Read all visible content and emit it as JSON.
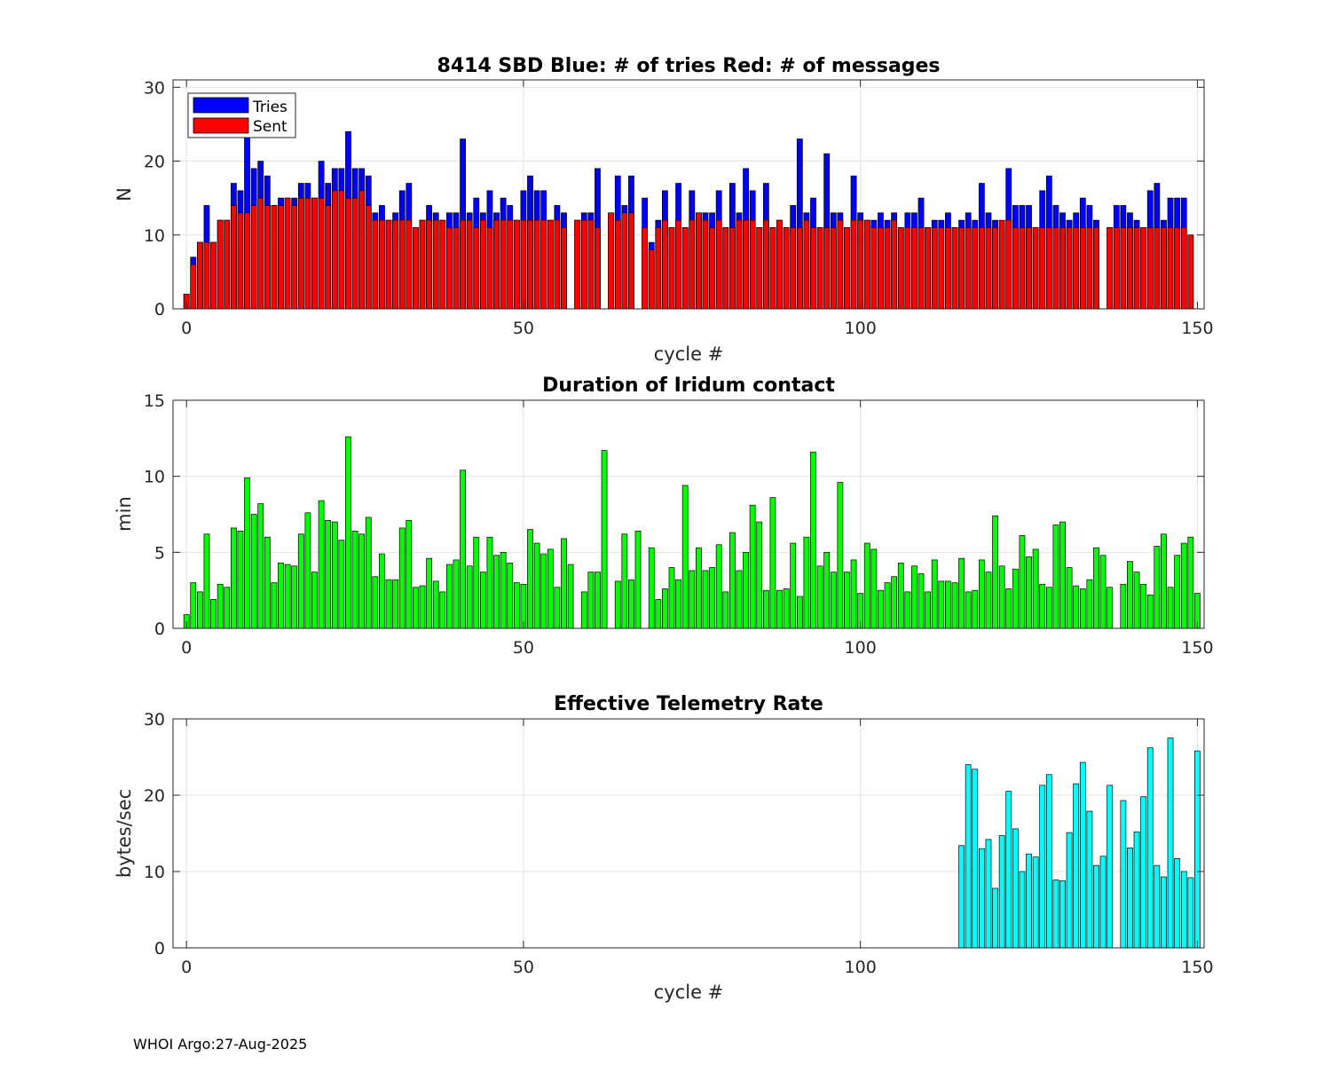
{
  "chart_data": [
    {
      "type": "bar",
      "title": "8414 SBD  Blue: # of tries   Red: # of messages",
      "xlabel": "cycle #",
      "ylabel": "N",
      "xlim": [
        -2,
        151
      ],
      "ylim": [
        0,
        31
      ],
      "xticks": [
        0,
        50,
        100,
        150
      ],
      "yticks": [
        0,
        10,
        20,
        30
      ],
      "grid": true,
      "legend": {
        "position": "top-left",
        "entries": [
          "Tries",
          "Sent"
        ]
      },
      "x_start": 0,
      "series": [
        {
          "name": "Tries",
          "color": "#0000ff",
          "values": [
            2,
            7,
            9,
            14,
            9,
            12,
            12,
            17,
            16,
            24,
            19,
            20,
            18,
            14,
            15,
            15,
            15,
            17,
            17,
            15,
            20,
            17,
            19,
            19,
            24,
            19,
            19,
            18,
            13,
            14,
            12,
            13,
            16,
            17,
            11,
            12,
            14,
            13,
            12,
            13,
            13,
            23,
            13,
            15,
            13,
            16,
            13,
            15,
            14,
            12,
            16,
            18,
            16,
            16,
            12,
            14,
            13,
            null,
            12,
            13,
            13,
            19,
            null,
            13,
            18,
            14,
            18,
            null,
            15,
            9,
            12,
            16,
            11,
            17,
            11,
            16,
            13,
            13,
            13,
            16,
            11,
            17,
            13,
            19,
            16,
            11,
            17,
            11,
            12,
            11,
            14,
            23,
            13,
            15,
            11,
            21,
            13,
            13,
            11,
            18,
            13,
            12,
            12,
            13,
            12,
            13,
            11,
            13,
            13,
            15,
            11,
            12,
            12,
            13,
            11,
            12,
            13,
            12,
            17,
            13,
            12,
            11,
            19,
            14,
            14,
            14,
            11,
            16,
            18,
            14,
            13,
            12,
            13,
            15,
            14,
            12,
            null,
            11,
            14,
            14,
            13,
            12,
            11,
            16,
            17,
            12,
            15,
            15,
            15,
            10
          ]
        },
        {
          "name": "Sent",
          "color": "#ff0000",
          "values": [
            2,
            6,
            9,
            9,
            9,
            12,
            12,
            14,
            13,
            13,
            14,
            15,
            14,
            14,
            14,
            15,
            14,
            15,
            15,
            15,
            15,
            14,
            16,
            16,
            15,
            15,
            16,
            14,
            12,
            12,
            12,
            12,
            12,
            12,
            11,
            12,
            12,
            12,
            12,
            11,
            11,
            12,
            12,
            11,
            12,
            11,
            12,
            12,
            12,
            12,
            12,
            12,
            12,
            12,
            12,
            12,
            11,
            null,
            12,
            12,
            12,
            11,
            null,
            13,
            12,
            13,
            13,
            null,
            11,
            8,
            11,
            12,
            11,
            12,
            11,
            12,
            13,
            12,
            11,
            12,
            11,
            11,
            12,
            12,
            12,
            11,
            12,
            11,
            12,
            11,
            11,
            11,
            12,
            11,
            11,
            11,
            11,
            12,
            11,
            12,
            12,
            12,
            11,
            11,
            11,
            12,
            11,
            11,
            11,
            11,
            11,
            11,
            11,
            11,
            11,
            11,
            11,
            11,
            11,
            11,
            11,
            12,
            12,
            11,
            11,
            11,
            11,
            11,
            11,
            11,
            11,
            11,
            11,
            11,
            11,
            11,
            null,
            11,
            11,
            11,
            11,
            11,
            11,
            11,
            11,
            11,
            11,
            11,
            11,
            10
          ]
        }
      ]
    },
    {
      "type": "bar",
      "title": "Duration of Iridum contact",
      "xlabel": "",
      "ylabel": "min",
      "xlim": [
        -2,
        151
      ],
      "ylim": [
        0,
        15
      ],
      "xticks": [
        0,
        50,
        100,
        150
      ],
      "yticks": [
        0,
        5,
        10,
        15
      ],
      "grid": true,
      "x_start": 0,
      "series": [
        {
          "name": "Duration",
          "color": "#00ff00",
          "values": [
            0.9,
            3.0,
            2.4,
            6.2,
            1.9,
            2.9,
            2.7,
            6.6,
            6.4,
            9.9,
            7.5,
            8.2,
            6.0,
            3.0,
            4.3,
            4.2,
            4.1,
            6.2,
            7.6,
            3.7,
            8.4,
            7.1,
            7.0,
            5.8,
            12.6,
            6.4,
            6.2,
            7.3,
            3.4,
            4.9,
            3.2,
            3.2,
            6.6,
            7.1,
            2.7,
            2.8,
            4.6,
            3.1,
            2.4,
            4.2,
            4.5,
            10.4,
            4.1,
            6.0,
            3.7,
            6.0,
            4.8,
            5.0,
            4.3,
            3.0,
            2.9,
            6.5,
            5.6,
            4.9,
            5.2,
            2.7,
            5.9,
            4.2,
            null,
            2.4,
            3.7,
            3.7,
            11.7,
            null,
            3.1,
            6.2,
            3.2,
            6.4,
            null,
            5.3,
            1.9,
            2.6,
            4.0,
            3.2,
            9.4,
            3.8,
            5.3,
            3.8,
            4.0,
            5.5,
            2.4,
            6.3,
            3.8,
            5.0,
            8.1,
            7.0,
            2.5,
            8.6,
            2.5,
            2.6,
            5.6,
            2.1,
            6.0,
            11.6,
            4.1,
            5.0,
            3.7,
            9.6,
            3.7,
            4.5,
            2.3,
            5.6,
            5.2,
            2.5,
            3.0,
            3.4,
            4.3,
            2.4,
            4.1,
            3.6,
            2.4,
            4.5,
            3.1,
            3.1,
            3.0,
            4.6,
            2.4,
            2.5,
            4.5,
            3.7,
            7.4,
            4.1,
            2.6,
            3.9,
            6.1,
            4.7,
            5.2,
            2.9,
            2.7,
            6.8,
            7.0,
            4.0,
            2.8,
            2.6,
            3.2,
            5.3,
            4.8,
            2.7,
            null,
            2.9,
            4.4,
            3.7,
            2.9,
            2.2,
            5.4,
            6.2,
            2.7,
            4.8,
            5.6,
            6.0,
            2.3
          ]
        }
      ]
    },
    {
      "type": "bar",
      "title": "Effective Telemetry Rate",
      "xlabel": "cycle #",
      "ylabel": "bytes/sec",
      "xlim": [
        -2,
        151
      ],
      "ylim": [
        0,
        30
      ],
      "xticks": [
        0,
        50,
        100,
        150
      ],
      "yticks": [
        0,
        10,
        20,
        30
      ],
      "grid": true,
      "x_start": 115,
      "series": [
        {
          "name": "Rate",
          "color": "#00ffff",
          "values": [
            13.4,
            24.0,
            23.4,
            13.0,
            14.2,
            7.8,
            14.7,
            20.5,
            15.6,
            10.0,
            12.3,
            11.9,
            21.3,
            22.7,
            8.9,
            8.8,
            15.1,
            21.5,
            24.3,
            17.9,
            10.8,
            12.0,
            21.3,
            null,
            19.3,
            13.1,
            15.2,
            19.8,
            26.2,
            10.8,
            9.3,
            27.5,
            11.7,
            10.0,
            9.2,
            25.8
          ]
        }
      ]
    }
  ],
  "footer": "WHOI Argo:27-Aug-2025"
}
